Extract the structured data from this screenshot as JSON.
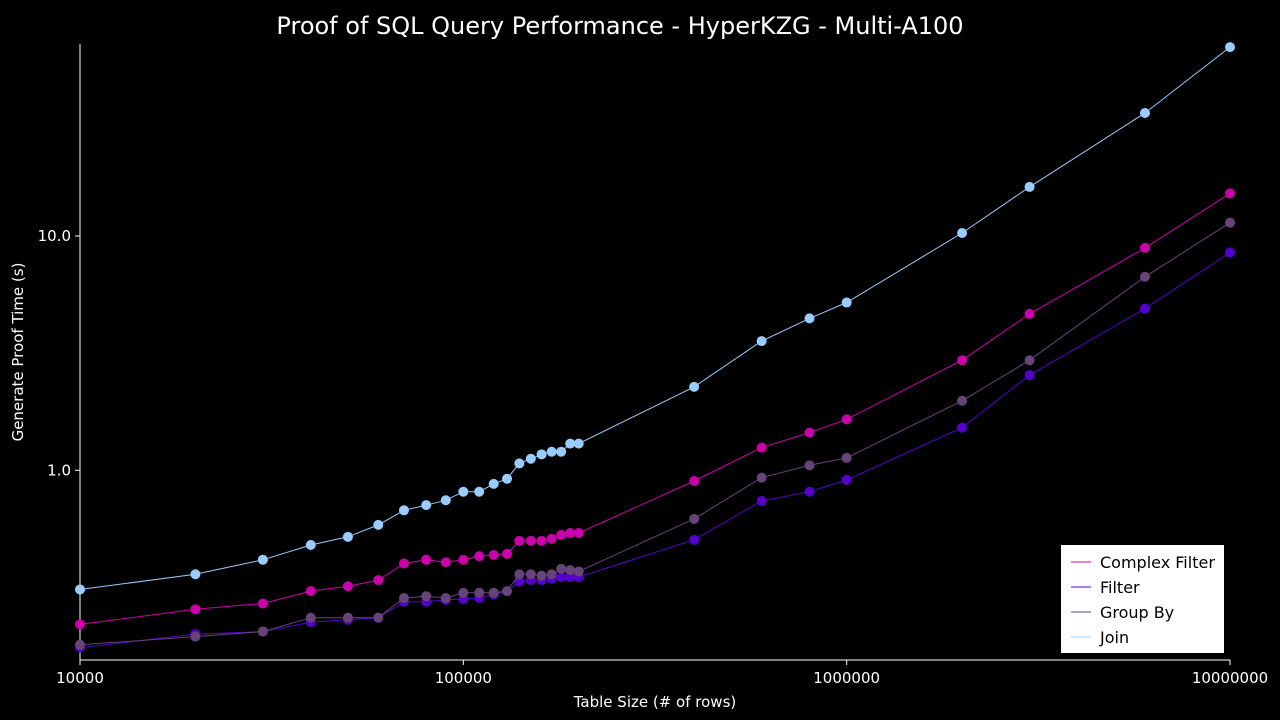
{
  "chart_data": {
    "type": "line",
    "title": "Proof of SQL Query Performance - HyperKZG - Multi-A100",
    "xlabel": "Table Size (# of rows)",
    "ylabel": "Generate Proof Time (s)",
    "xscale": "log",
    "yscale": "log",
    "xlim": [
      10000,
      10000000
    ],
    "ylim": [
      0.155,
      66
    ],
    "x_ticks": [
      10000,
      100000,
      1000000,
      10000000
    ],
    "x_tick_labels": [
      "10000",
      "100000",
      "1000000",
      "10000000"
    ],
    "y_ticks": [
      1.0,
      10.0
    ],
    "y_tick_labels": [
      "1.0",
      "10.0"
    ],
    "grid": false,
    "legend_position": "lower-right",
    "background": "#000000",
    "series": [
      {
        "name": "Complex Filter",
        "color": "#cc00aa",
        "x": [
          10000,
          20000,
          30000,
          40000,
          50000,
          60000,
          70000,
          80000,
          90000,
          100000,
          110000,
          120000,
          130000,
          140000,
          150000,
          160000,
          170000,
          180000,
          190000,
          200000,
          400000,
          600000,
          800000,
          1000000,
          2000000,
          3000000,
          6000000,
          10000000
        ],
        "y": [
          0.22,
          0.255,
          0.27,
          0.305,
          0.32,
          0.34,
          0.4,
          0.415,
          0.405,
          0.415,
          0.43,
          0.435,
          0.44,
          0.5,
          0.5,
          0.5,
          0.51,
          0.53,
          0.54,
          0.54,
          0.9,
          1.25,
          1.45,
          1.65,
          2.95,
          4.65,
          8.9,
          15.2
        ]
      },
      {
        "name": "Filter",
        "color": "#5500cc",
        "x": [
          10000,
          20000,
          30000,
          40000,
          50000,
          60000,
          70000,
          80000,
          90000,
          100000,
          110000,
          120000,
          130000,
          140000,
          150000,
          160000,
          170000,
          180000,
          190000,
          200000,
          400000,
          600000,
          800000,
          1000000,
          2000000,
          3000000,
          6000000,
          10000000
        ],
        "y": [
          0.175,
          0.2,
          0.205,
          0.225,
          0.23,
          0.235,
          0.275,
          0.275,
          0.28,
          0.282,
          0.285,
          0.295,
          0.305,
          0.335,
          0.34,
          0.34,
          0.345,
          0.35,
          0.35,
          0.35,
          0.505,
          0.74,
          0.81,
          0.91,
          1.52,
          2.55,
          4.9,
          8.5
        ]
      },
      {
        "name": "Group By",
        "color": "#664477",
        "x": [
          10000,
          20000,
          30000,
          40000,
          50000,
          60000,
          70000,
          80000,
          90000,
          100000,
          110000,
          120000,
          130000,
          140000,
          150000,
          160000,
          170000,
          180000,
          190000,
          200000,
          400000,
          600000,
          800000,
          1000000,
          2000000,
          3000000,
          6000000,
          10000000
        ],
        "y": [
          0.18,
          0.195,
          0.205,
          0.235,
          0.235,
          0.235,
          0.285,
          0.29,
          0.285,
          0.3,
          0.3,
          0.3,
          0.305,
          0.36,
          0.36,
          0.355,
          0.36,
          0.38,
          0.375,
          0.37,
          0.62,
          0.93,
          1.05,
          1.13,
          1.98,
          2.95,
          6.7,
          11.4
        ]
      },
      {
        "name": "Join",
        "color": "#99ccff",
        "x": [
          10000,
          20000,
          30000,
          40000,
          50000,
          60000,
          70000,
          80000,
          90000,
          100000,
          110000,
          120000,
          130000,
          140000,
          150000,
          160000,
          170000,
          180000,
          190000,
          200000,
          400000,
          600000,
          800000,
          1000000,
          2000000,
          3000000,
          6000000,
          10000000
        ],
        "y": [
          0.31,
          0.36,
          0.415,
          0.48,
          0.52,
          0.585,
          0.675,
          0.71,
          0.745,
          0.81,
          0.81,
          0.875,
          0.92,
          1.07,
          1.12,
          1.17,
          1.2,
          1.2,
          1.3,
          1.3,
          2.27,
          3.56,
          4.45,
          5.2,
          10.3,
          16.2,
          33.5,
          64.0
        ]
      }
    ]
  }
}
